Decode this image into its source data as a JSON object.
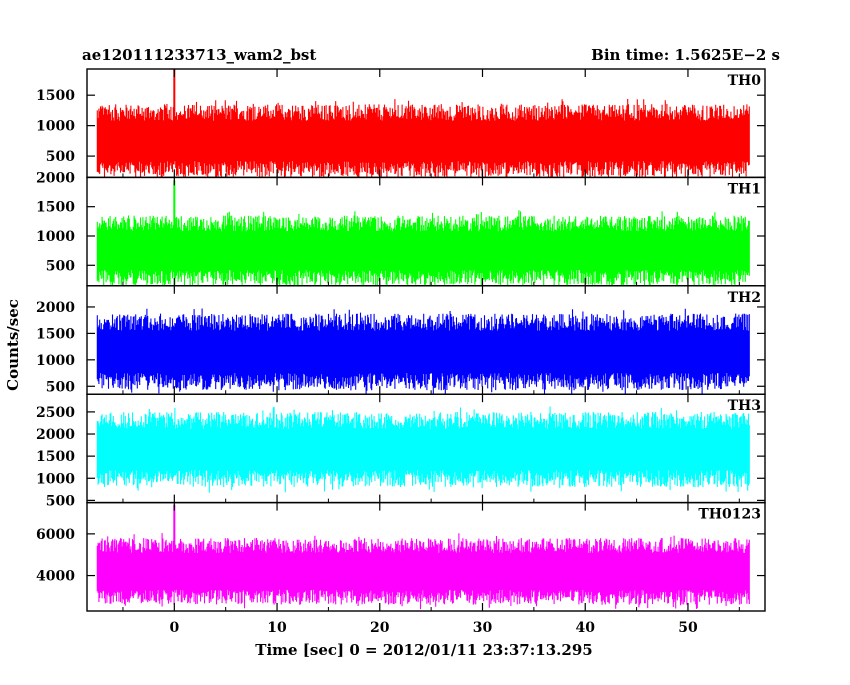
{
  "header": {
    "title": "ae120111233713_wam2_bst",
    "bin_time": "Bin time: 1.5625E−2 s"
  },
  "chart_data": {
    "type": "line",
    "xlabel": "Time [sec] 0 = 2012/01/11 23:37:13.295",
    "ylabel": "Counts/sec",
    "xlim": [
      -8.5,
      57.5
    ],
    "x_ticks": [
      0,
      10,
      20,
      30,
      40,
      50
    ],
    "x_tick_labels": [
      "0",
      "10",
      "20",
      "30",
      "40",
      "50"
    ],
    "x_range_data": [
      -7.5,
      56
    ],
    "panels": [
      {
        "name": "TH0",
        "color": "#ff0000",
        "ylim": [
          150,
          1930
        ],
        "y_ticks": [
          500,
          1000,
          1500
        ],
        "y_tick_labels": [
          "500",
          "1000",
          "1500"
        ],
        "baseline": 750,
        "typical_range": [
          200,
          1400
        ],
        "peak": {
          "x": 0,
          "y": 1930
        }
      },
      {
        "name": "TH1",
        "color": "#00ff00",
        "ylim": [
          150,
          2000
        ],
        "y_ticks": [
          500,
          1000,
          1500,
          2000
        ],
        "y_tick_labels": [
          "500",
          "1000",
          "1500",
          "2000"
        ],
        "baseline": 750,
        "typical_range": [
          200,
          1400
        ],
        "peak": {
          "x": 0,
          "y": 1950
        }
      },
      {
        "name": "TH2",
        "color": "#0000ff",
        "ylim": [
          350,
          2400
        ],
        "y_ticks": [
          500,
          1000,
          1500,
          2000
        ],
        "y_tick_labels": [
          "500",
          "1000",
          "1500",
          "2000"
        ],
        "baseline": 1150,
        "typical_range": [
          500,
          1950
        ]
      },
      {
        "name": "TH3",
        "color": "#00ffff",
        "ylim": [
          450,
          2900
        ],
        "y_ticks": [
          500,
          1000,
          1500,
          2000,
          2500
        ],
        "y_tick_labels": [
          "500",
          "1000",
          "1500",
          "2000",
          "2500"
        ],
        "baseline": 1650,
        "typical_range": [
          800,
          2500
        ]
      },
      {
        "name": "TH0123",
        "color": "#ff00ff",
        "ylim": [
          2300,
          7500
        ],
        "y_ticks": [
          4000,
          6000
        ],
        "y_tick_labels": [
          "4000",
          "6000"
        ],
        "baseline": 4200,
        "typical_range": [
          2700,
          5900
        ],
        "peak": {
          "x": 0,
          "y": 7400
        }
      }
    ]
  }
}
